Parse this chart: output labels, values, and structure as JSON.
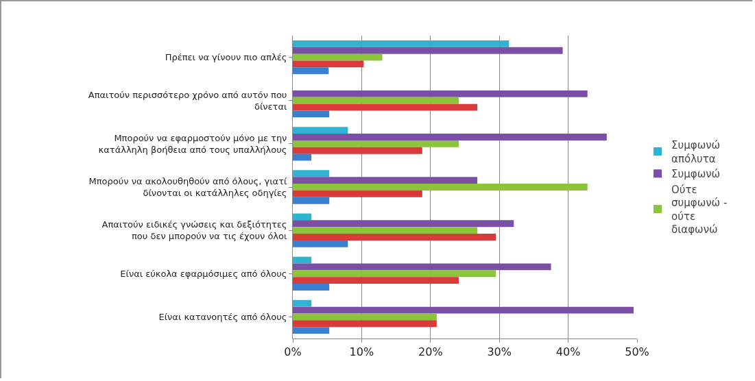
{
  "chart_data": {
    "type": "bar",
    "orientation": "horizontal",
    "categories": [
      "Πρέπει να γίνουν πιο απλές",
      "Απαιτούν περισσότερο χρόνο από αυτόν που δίνεται",
      "Μπορούν να εφαρμοστούν μόνο με την κατάλληλη βοήθεια από τους υπαλλήλους",
      "Μπορούν να ακολουθηθούν από όλους, γιατί δίνονται οι κατάλληλες οδηγίες",
      "Απαιτούν ειδικές γνώσεις και δεξιότητες που δεν μπορούν να τις έχουν όλοι",
      "Είναι εύκολα εφαρμόσιμες από όλους",
      "Είναι κατανοητές από όλους"
    ],
    "series": [
      {
        "name": "Συμφωνώ απόλυτα",
        "color": "#2fb3d0",
        "values": [
          31.4,
          0,
          8,
          5.3,
          2.7,
          2.7,
          2.7
        ]
      },
      {
        "name": "Συμφωνώ",
        "color": "#7b4fa6",
        "values": [
          39.2,
          42.8,
          45.6,
          26.8,
          32.1,
          37.5,
          49.5
        ]
      },
      {
        "name": "Ούτε συμφωνώ - ούτε διαφωνώ",
        "color": "#8cc43c",
        "values": [
          13,
          24.1,
          24.1,
          42.8,
          26.8,
          29.5,
          20.9
        ]
      },
      {
        "color": "#d93a3a",
        "values": [
          10.3,
          26.8,
          18.8,
          18.8,
          29.5,
          24.1,
          20.9
        ]
      },
      {
        "color": "#3a7fd0",
        "values": [
          5.2,
          5.3,
          2.7,
          5.3,
          8,
          5.3,
          5.3
        ]
      }
    ],
    "xlim": [
      0,
      50
    ],
    "xticks": [
      {
        "value": 0,
        "label": "0%"
      },
      {
        "value": 10,
        "label": "10%"
      },
      {
        "value": 20,
        "label": "20%"
      },
      {
        "value": 30,
        "label": "30%"
      },
      {
        "value": 40,
        "label": "40%"
      },
      {
        "value": 50,
        "label": "50%"
      }
    ],
    "grid": "x",
    "legend": "right"
  }
}
